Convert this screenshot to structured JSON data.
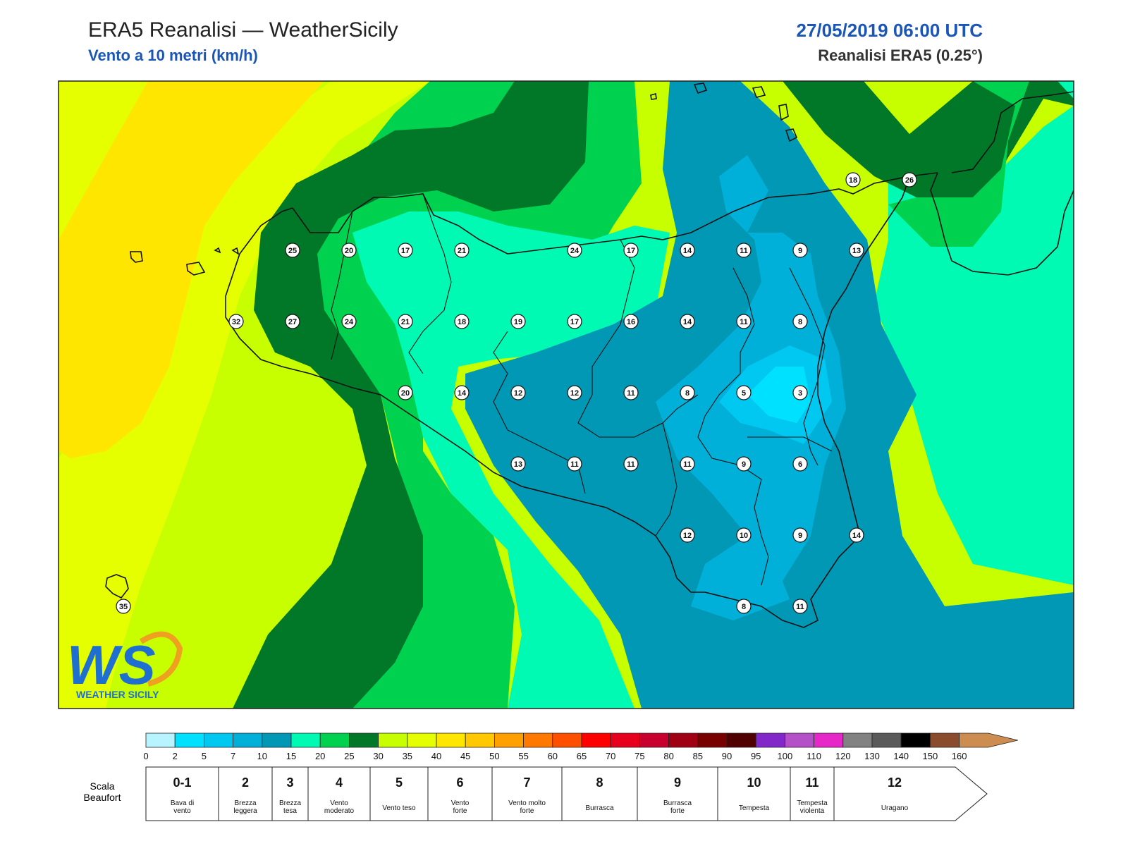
{
  "header": {
    "title": "ERA5 Reanalisi — WeatherSicily",
    "subtitle": "Vento a 10 metri (km/h)",
    "datetime": "27/05/2019 06:00 UTC",
    "model": "Reanalisi ERA5 (0.25°)"
  },
  "logo": {
    "text": "WS",
    "caption": "WEATHER SICILY"
  },
  "stations": [
    {
      "v": "18"
    },
    {
      "v": "26"
    },
    {
      "v": "25"
    },
    {
      "v": "20"
    },
    {
      "v": "17"
    },
    {
      "v": "21"
    },
    {
      "v": "24"
    },
    {
      "v": "17"
    },
    {
      "v": "14"
    },
    {
      "v": "11"
    },
    {
      "v": "9"
    },
    {
      "v": "13"
    },
    {
      "v": "32"
    },
    {
      "v": "27"
    },
    {
      "v": "24"
    },
    {
      "v": "21"
    },
    {
      "v": "18"
    },
    {
      "v": "19"
    },
    {
      "v": "17"
    },
    {
      "v": "16"
    },
    {
      "v": "14"
    },
    {
      "v": "11"
    },
    {
      "v": "8"
    },
    {
      "v": "20"
    },
    {
      "v": "14"
    },
    {
      "v": "12"
    },
    {
      "v": "12"
    },
    {
      "v": "11"
    },
    {
      "v": "8"
    },
    {
      "v": "5"
    },
    {
      "v": "3"
    },
    {
      "v": "13"
    },
    {
      "v": "11"
    },
    {
      "v": "11"
    },
    {
      "v": "11"
    },
    {
      "v": "9"
    },
    {
      "v": "6"
    },
    {
      "v": "12"
    },
    {
      "v": "10"
    },
    {
      "v": "9"
    },
    {
      "v": "14"
    },
    {
      "v": "8"
    },
    {
      "v": "11"
    },
    {
      "v": "35"
    }
  ],
  "colorbar": {
    "colors": [
      "#b8f4ff",
      "#00e0ff",
      "#00c8f0",
      "#00b0d8",
      "#0098b4",
      "#00fab4",
      "#00d250",
      "#007828",
      "#c8ff00",
      "#e6ff00",
      "#ffe600",
      "#ffc800",
      "#ffa000",
      "#ff7800",
      "#ff5000",
      "#ff0000",
      "#e6001e",
      "#c8002d",
      "#a00014",
      "#780000",
      "#500000",
      "#8228c8",
      "#b450c8",
      "#e628c8",
      "#828282",
      "#5a5a5a",
      "#000000",
      "#8b4b2d",
      "#cd8c50"
    ],
    "labels": [
      "0",
      "2",
      "5",
      "7",
      "10",
      "15",
      "20",
      "25",
      "30",
      "35",
      "40",
      "45",
      "50",
      "55",
      "60",
      "65",
      "70",
      "75",
      "80",
      "85",
      "90",
      "95",
      "100",
      "110",
      "120",
      "130",
      "140",
      "150",
      "160"
    ]
  },
  "beaufort": {
    "scale_label_1": "Scala",
    "scale_label_2": "Beaufort",
    "classes": [
      {
        "num": "0-1",
        "l1": "Bava di",
        "l2": "vento"
      },
      {
        "num": "2",
        "l1": "Brezza",
        "l2": "leggera"
      },
      {
        "num": "3",
        "l1": "Brezza",
        "l2": "tesa"
      },
      {
        "num": "4",
        "l1": "Vento",
        "l2": "moderato"
      },
      {
        "num": "5",
        "l1": "Vento teso",
        "l2": ""
      },
      {
        "num": "6",
        "l1": "Vento",
        "l2": "forte"
      },
      {
        "num": "7",
        "l1": "Vento molto",
        "l2": "forte"
      },
      {
        "num": "8",
        "l1": "Burrasca",
        "l2": ""
      },
      {
        "num": "9",
        "l1": "Burrasca",
        "l2": "forte"
      },
      {
        "num": "10",
        "l1": "Tempesta",
        "l2": ""
      },
      {
        "num": "11",
        "l1": "Tempesta",
        "l2": "violenta"
      },
      {
        "num": "12",
        "l1": "Uragano",
        "l2": ""
      }
    ]
  }
}
